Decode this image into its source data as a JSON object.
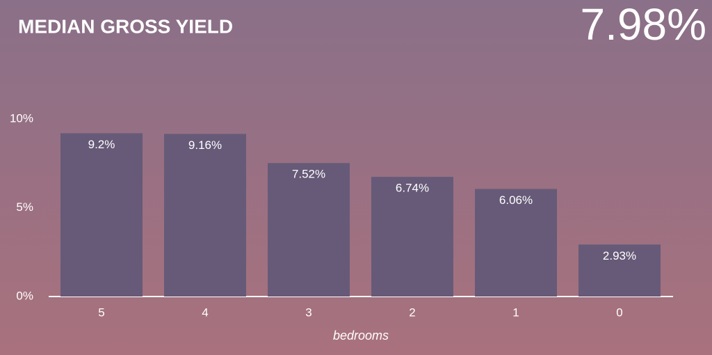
{
  "chart_data": {
    "type": "bar",
    "title": "MEDIAN GROSS YIELD",
    "headline": "7.98%",
    "x_label": "bedrooms",
    "categories": [
      "5",
      "4",
      "3",
      "2",
      "1",
      "0"
    ],
    "values": [
      9.2,
      9.16,
      7.52,
      6.74,
      6.06,
      2.93
    ],
    "value_labels": [
      "9.2%",
      "9.16%",
      "7.52%",
      "6.74%",
      "6.06%",
      "2.93%"
    ],
    "color": "#665a78",
    "ylim": [
      0,
      10
    ],
    "yticks": [
      {
        "value": 0,
        "label": "0%"
      },
      {
        "value": 5,
        "label": "5%"
      },
      {
        "value": 10,
        "label": "10%"
      }
    ],
    "grid": false
  }
}
